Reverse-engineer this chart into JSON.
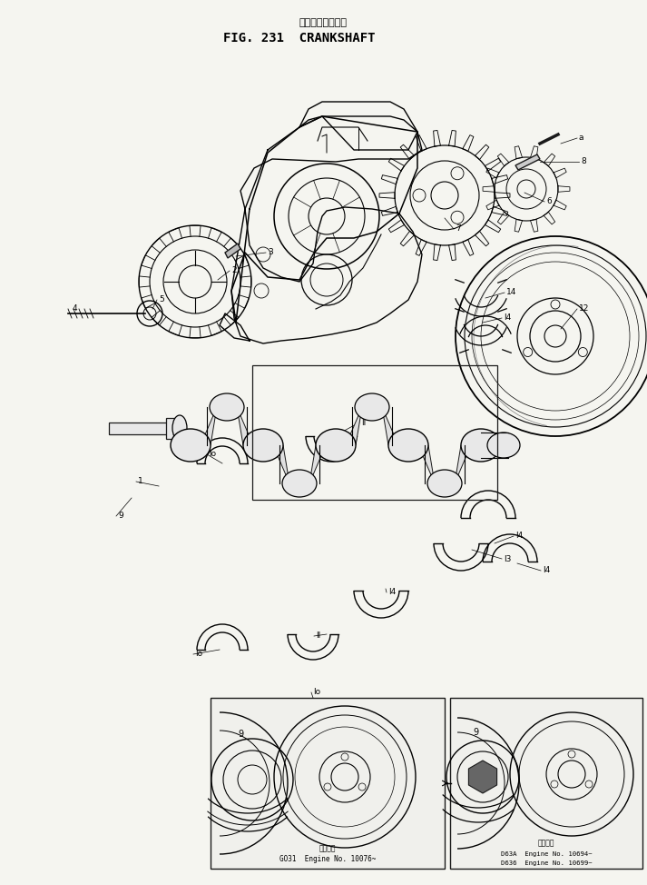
{
  "title_japanese": "クランクシャフト",
  "title_english": "FIG. 231  CRANKSHAFT",
  "bg_color": "#f5f5f0",
  "line_color": "#1a1a1a",
  "fig_width": 7.13,
  "fig_height": 9.74,
  "dpi": 100,
  "box1_label_jp": "適用号機",
  "box1_label1": "GO31  Engine No. 10076~",
  "box2_label_jp": "適用号機",
  "box2_label1": "D63A  Engine No. 10694~",
  "box2_label2": "D636  Engine No. 10699~"
}
